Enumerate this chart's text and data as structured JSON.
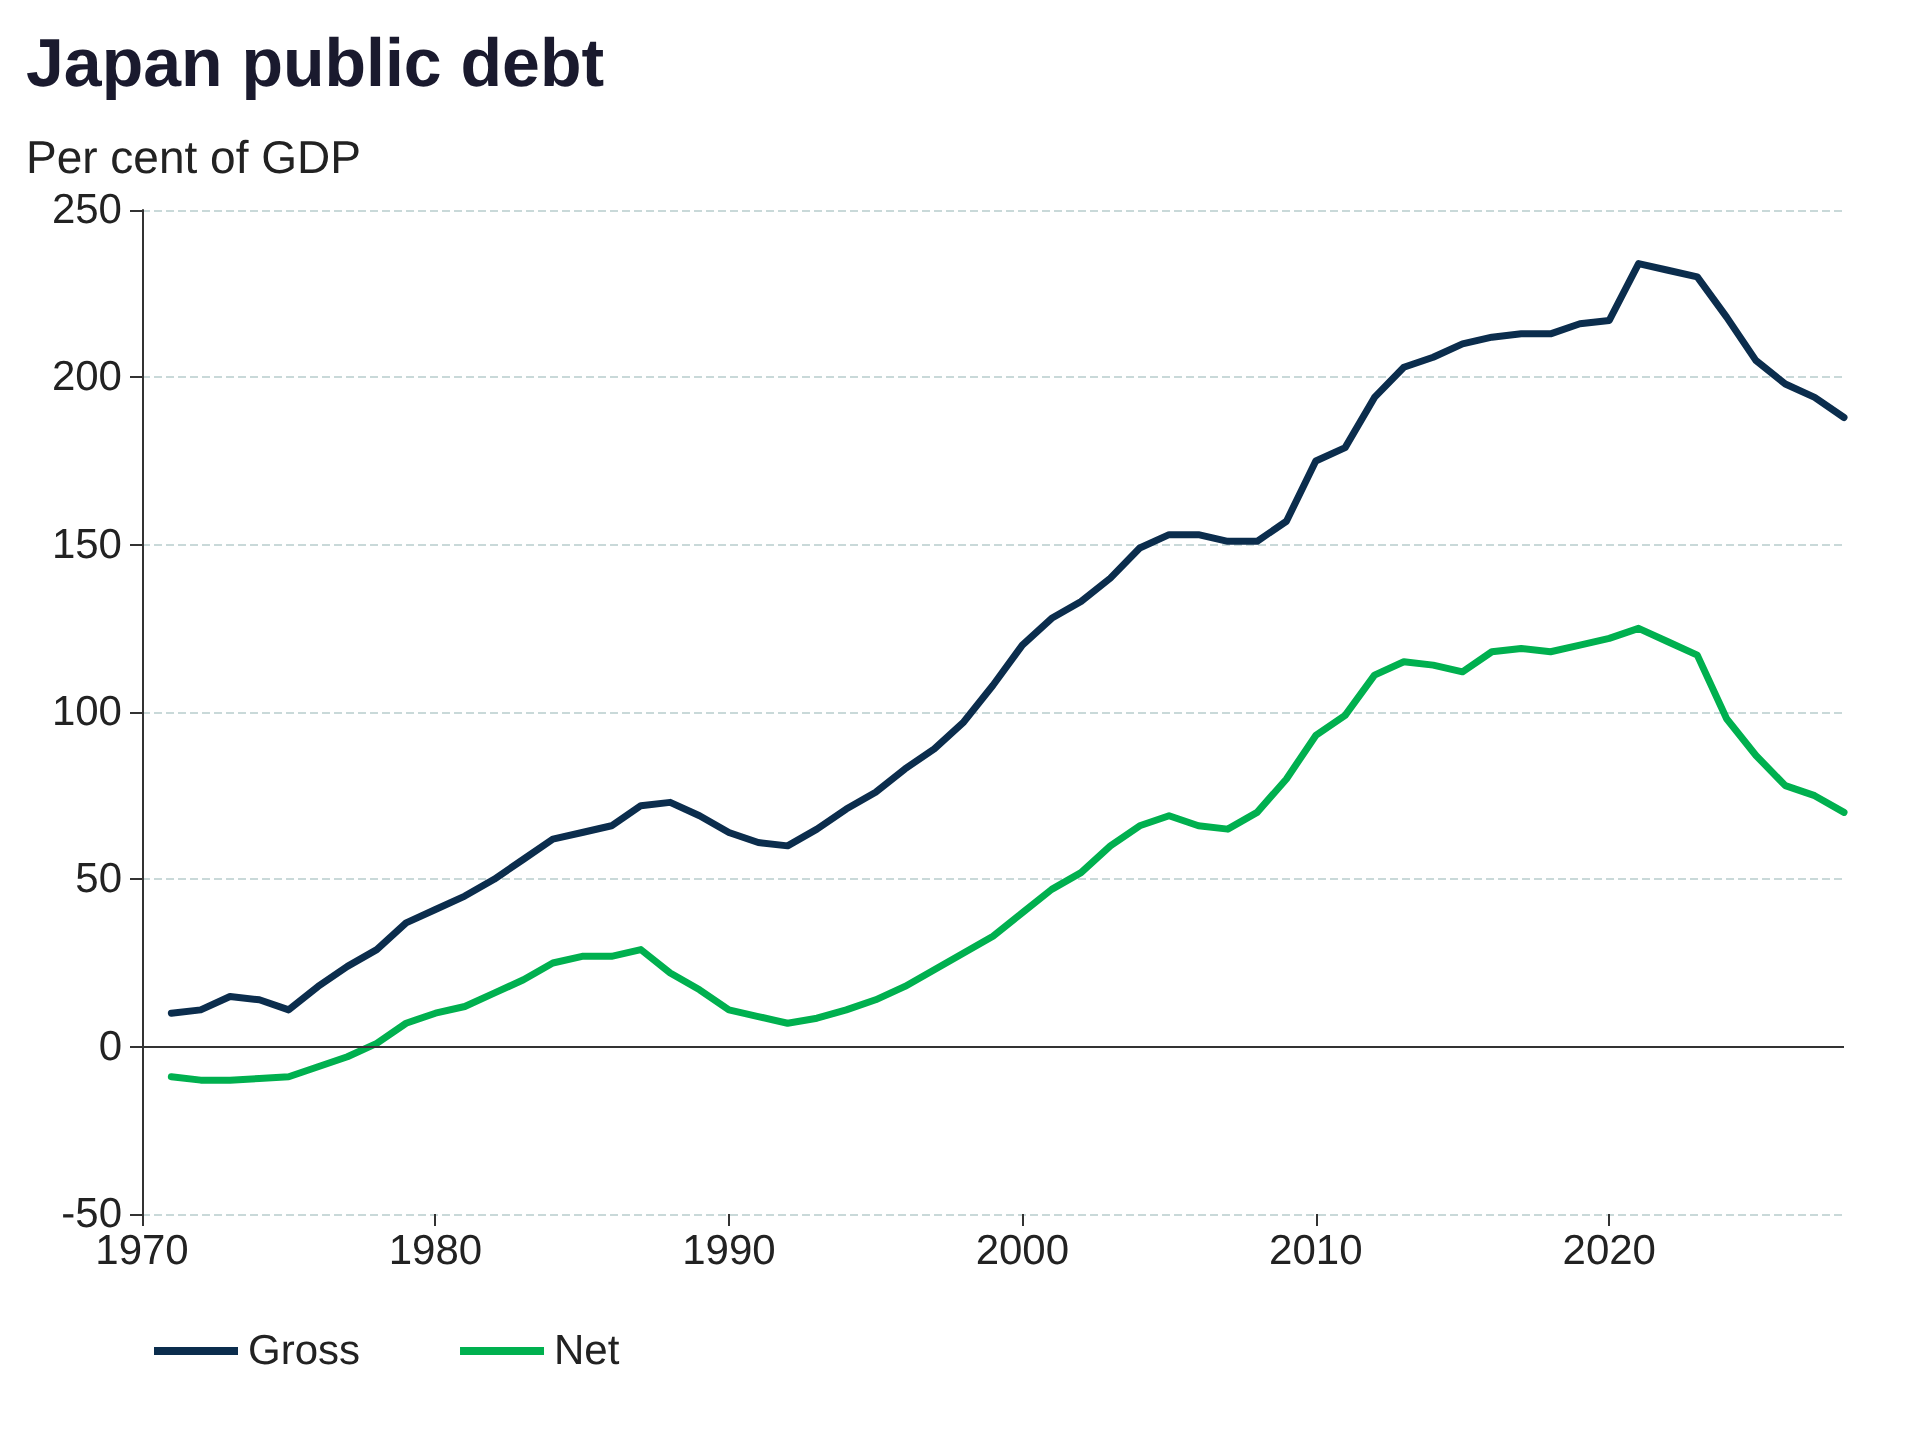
{
  "chart_data": {
    "type": "line",
    "title": "Japan public debt",
    "ylabel": "Per cent of GDP",
    "x": [
      1971,
      1972,
      1973,
      1974,
      1975,
      1976,
      1977,
      1978,
      1979,
      1980,
      1981,
      1982,
      1983,
      1984,
      1985,
      1986,
      1987,
      1988,
      1989,
      1990,
      1991,
      1992,
      1993,
      1994,
      1995,
      1996,
      1997,
      1998,
      1999,
      2000,
      2001,
      2002,
      2003,
      2004,
      2005,
      2006,
      2007,
      2008,
      2009,
      2010,
      2011,
      2012,
      2013,
      2014,
      2015,
      2016,
      2017,
      2018,
      2019,
      2020,
      2021,
      2022,
      2023,
      2024,
      2025,
      2026,
      2027,
      2028
    ],
    "series": [
      {
        "name": "Gross",
        "color": "#0b2d4d",
        "values": [
          10,
          11,
          15,
          14,
          11,
          18,
          24,
          29,
          37,
          41,
          45,
          50,
          56,
          62,
          64,
          66,
          72,
          73,
          69,
          64,
          61,
          60,
          65,
          71,
          76,
          83,
          89,
          97,
          108,
          120,
          128,
          133,
          140,
          149,
          153,
          153,
          151,
          151,
          157,
          175,
          179,
          194,
          203,
          206,
          210,
          212,
          213,
          213,
          216,
          217,
          234,
          232,
          230,
          218,
          205,
          198,
          194,
          188
        ]
      },
      {
        "name": "Net",
        "color": "#00b04f",
        "values": [
          -9,
          -10,
          -10,
          -9.5,
          -9,
          -6,
          -3,
          1,
          7,
          10,
          12,
          16,
          20,
          25,
          27,
          27,
          29,
          22,
          17,
          11,
          9,
          7,
          8.5,
          11,
          14,
          18,
          23,
          28,
          33,
          40,
          47,
          52,
          60,
          66,
          69,
          66,
          65,
          70,
          80,
          93,
          99,
          111,
          115,
          114,
          112,
          118,
          119,
          118,
          120,
          122,
          125,
          121,
          117,
          98,
          87,
          78,
          75,
          70
        ]
      }
    ],
    "xlim": [
      1970,
      2028
    ],
    "xticks": [
      1970,
      1980,
      1990,
      2000,
      2010,
      2020
    ],
    "ylim": [
      -50,
      250
    ],
    "yticks": [
      -50,
      0,
      50,
      100,
      150,
      200,
      250
    ],
    "ref_lines": [
      {
        "axis": "y",
        "value": 0,
        "color": "#333333"
      }
    ],
    "grid": "y",
    "legend": "bottom left",
    "marker": "none",
    "line_style": "solid"
  }
}
